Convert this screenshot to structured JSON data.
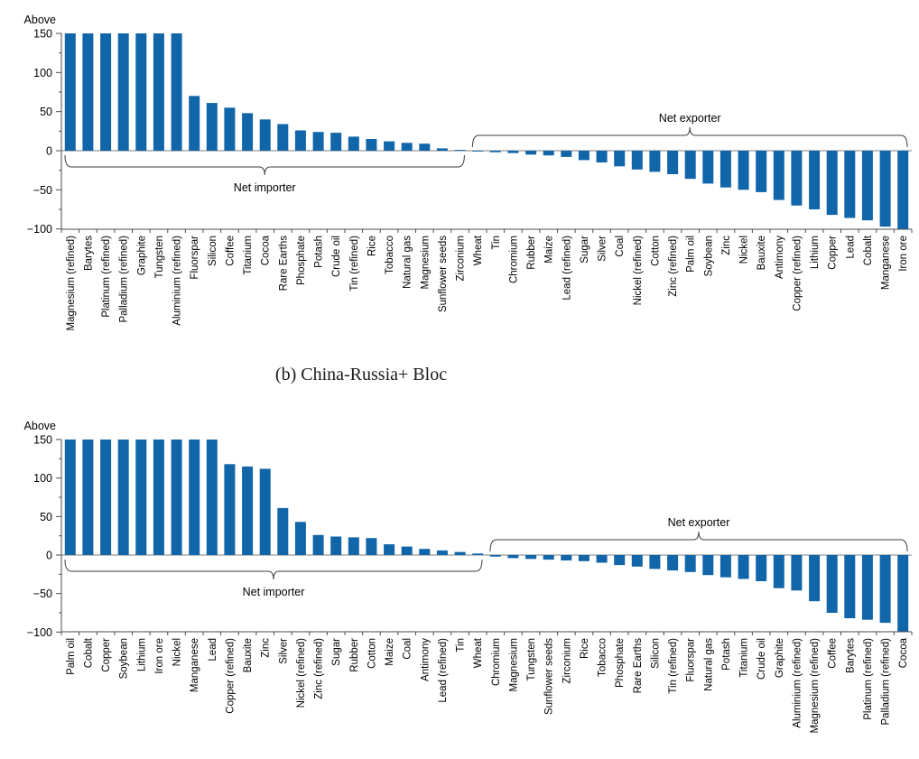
{
  "caption_b": "(b) China-Russia+ Bloc",
  "colors": {
    "bar": "#1165a9",
    "zero_line": "#808080",
    "axis_line": "#4d4d4d",
    "brace_line": "#3c3c3c",
    "text": "#000000"
  },
  "chart_data": [
    {
      "type": "bar",
      "panel": "top",
      "cap_label": "Above",
      "ylim": [
        -100,
        150
      ],
      "ytick_major_step": 50,
      "ytick_minor_step": 25,
      "grid": false,
      "categories": [
        "Magnesium (refined)",
        "Barytes",
        "Platinum (refined)",
        "Palladium (refined)",
        "Graphite",
        "Tungsten",
        "Aluminium (refined)",
        "Fluorspar",
        "Silicon",
        "Coffee",
        "Titanium",
        "Cocoa",
        "Rare Earths",
        "Phosphate",
        "Potash",
        "Crude oil",
        "Tin (refined)",
        "Rice",
        "Tobacco",
        "Natural gas",
        "Magnesium",
        "Sunflower seeds",
        "Zirconium",
        "Wheat",
        "Tin",
        "Chromium",
        "Rubber",
        "Maize",
        "Lead (refined)",
        "Sugar",
        "Silver",
        "Coal",
        "Nickel (refined)",
        "Cotton",
        "Zinc (refined)",
        "Palm oil",
        "Soybean",
        "Zinc",
        "Nickel",
        "Bauxite",
        "Antimony",
        "Copper (refined)",
        "Lithium",
        "Copper",
        "Lead",
        "Cobalt",
        "Manganese",
        "Iron ore"
      ],
      "values": [
        150,
        150,
        150,
        150,
        150,
        150,
        150,
        70,
        61,
        55,
        48,
        40,
        34,
        26,
        24,
        23,
        18,
        15,
        12,
        10,
        9,
        3,
        1,
        -1,
        -2,
        -3,
        -5,
        -6,
        -8,
        -12,
        -15,
        -20,
        -24,
        -27,
        -30,
        -36,
        -42,
        -47,
        -50,
        -53,
        -63,
        -70,
        -75,
        -82,
        -86,
        -89,
        -97,
        -100
      ],
      "annotations": [
        {
          "label": "Net importer",
          "side": "below",
          "from": 0,
          "to": 22
        },
        {
          "label": "Net exporter",
          "side": "above",
          "from": 23,
          "to": 47
        }
      ]
    },
    {
      "type": "bar",
      "panel": "bottom",
      "cap_label": "Above",
      "ylim": [
        -100,
        150
      ],
      "ytick_major_step": 50,
      "ytick_minor_step": 25,
      "grid": false,
      "categories": [
        "Palm oil",
        "Cobalt",
        "Copper",
        "Soybean",
        "Lithium",
        "Iron ore",
        "Nickel",
        "Manganese",
        "Lead",
        "Copper (refined)",
        "Bauxite",
        "Zinc",
        "Silver",
        "Nickel (refined)",
        "Zinc (refined)",
        "Sugar",
        "Rubber",
        "Cotton",
        "Maize",
        "Coal",
        "Antimony",
        "Lead (refined)",
        "Tin",
        "Wheat",
        "Chromium",
        "Magnesium",
        "Tungsten",
        "Sunflower seeds",
        "Zirconium",
        "Rice",
        "Tobacco",
        "Phosphate",
        "Rare Earths",
        "Silicon",
        "Tin (refined)",
        "Fluorspar",
        "Natural gas",
        "Potash",
        "Titanium",
        "Crude oil",
        "Graphite",
        "Aluminium (refined)",
        "Magnesium (refined)",
        "Coffee",
        "Barytes",
        "Platinum (refined)",
        "Palladium (refined)",
        "Cocoa"
      ],
      "values": [
        150,
        150,
        150,
        150,
        150,
        150,
        150,
        150,
        150,
        118,
        115,
        112,
        61,
        43,
        26,
        24,
        23,
        22,
        14,
        11,
        8,
        6,
        4,
        2,
        -2,
        -4,
        -5,
        -6,
        -7,
        -8,
        -10,
        -13,
        -15,
        -18,
        -20,
        -22,
        -26,
        -29,
        -31,
        -34,
        -43,
        -46,
        -60,
        -75,
        -82,
        -84,
        -88,
        -100
      ],
      "annotations": [
        {
          "label": "Net importer",
          "side": "below",
          "from": 0,
          "to": 23
        },
        {
          "label": "Net exporter",
          "side": "above",
          "from": 24,
          "to": 47
        }
      ]
    }
  ]
}
